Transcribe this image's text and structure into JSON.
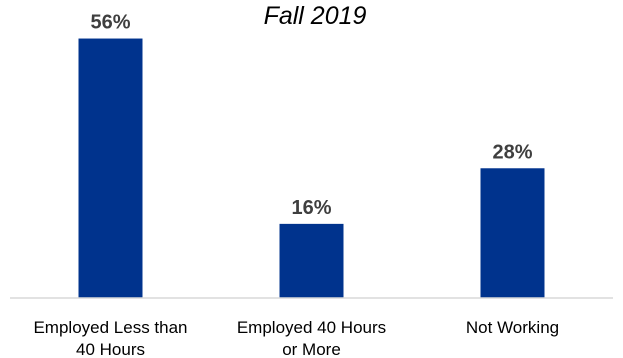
{
  "chart_data": {
    "type": "bar",
    "title": "Fall 2019",
    "categories": [
      [
        "Employed Less than",
        "40 Hours"
      ],
      [
        "Employed 40 Hours",
        "or More"
      ],
      [
        "Not Working"
      ]
    ],
    "values": [
      56,
      16,
      28
    ],
    "data_labels": [
      "56%",
      "16%",
      "28%"
    ],
    "value_unit": "%",
    "bar_color": "#00338D",
    "axis_color": "#D9D9D9",
    "label_color": "#3F3F3F",
    "grid": false,
    "legend": "none",
    "xlabel": "",
    "ylabel": "",
    "ylim": [
      0,
      60
    ]
  }
}
